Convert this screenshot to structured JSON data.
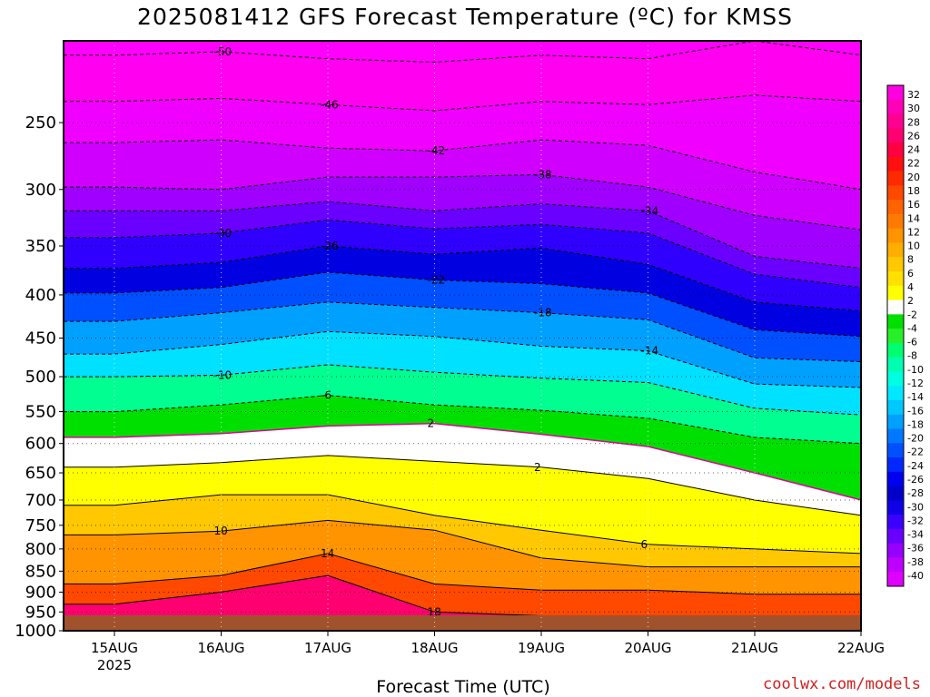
{
  "chart_data": {
    "type": "heatmap",
    "title": "2025081412 GFS Forecast Temperature (ºC) for KMSS",
    "xlabel": "Forecast Time (UTC)",
    "ylabel": "",
    "y_scale": "log",
    "y_reversed": true,
    "ylim": [
      1000,
      200
    ],
    "y_ticks": [
      250,
      300,
      350,
      400,
      450,
      500,
      550,
      600,
      650,
      700,
      750,
      800,
      850,
      900,
      950,
      1000
    ],
    "x_ticks": [
      "15AUG",
      "16AUG",
      "17AUG",
      "18AUG",
      "19AUG",
      "20AUG",
      "21AUG",
      "22AUG"
    ],
    "x_year_label": "2025",
    "grid": true,
    "colorbar": {
      "label_values": [
        32,
        30,
        28,
        26,
        24,
        22,
        20,
        18,
        16,
        14,
        12,
        10,
        8,
        6,
        4,
        2,
        -2,
        -4,
        -6,
        -8,
        -10,
        -12,
        -14,
        -16,
        -18,
        -20,
        -22,
        -24,
        -26,
        -28,
        -30,
        -32,
        -34,
        -36,
        -38,
        -40
      ],
      "colors": [
        "#ff00e0",
        "#ff00b8",
        "#ff0090",
        "#ff0070",
        "#ff0040",
        "#ff1010",
        "#ff2a00",
        "#ff4800",
        "#ff6400",
        "#ff7a00",
        "#ff9400",
        "#ffae00",
        "#ffc800",
        "#ffe000",
        "#ffff00",
        "#ffffff",
        "#00e000",
        "#28f028",
        "#00ff70",
        "#00ffb0",
        "#00ffe0",
        "#00e8ff",
        "#00c8ff",
        "#00a0ff",
        "#0078ff",
        "#0050ff",
        "#0028ff",
        "#0000f0",
        "#0000c8",
        "#1000e8",
        "#3c00ff",
        "#6a00ff",
        "#9600ff",
        "#c000ff",
        "#e000ff"
      ]
    },
    "ground_color": "#a0522d",
    "freezing_line_color": "#e0009a",
    "series": [
      {
        "label": "-50",
        "y": [
          208,
          206,
          210,
          212,
          208,
          210,
          200,
          208
        ]
      },
      {
        "label": "-46",
        "y": [
          236,
          234,
          238,
          242,
          236,
          238,
          232,
          236
        ]
      },
      {
        "label": "-42",
        "y": [
          264,
          262,
          268,
          270,
          262,
          266,
          286,
          300
        ]
      },
      {
        "label": "-38",
        "y": [
          298,
          300,
          290,
          290,
          288,
          298,
          322,
          335
        ]
      },
      {
        "label": "-34",
        "y": [
          318,
          318,
          310,
          318,
          312,
          318,
          360,
          372
        ]
      },
      {
        "label": "-30",
        "y": [
          342,
          338,
          326,
          334,
          330,
          338,
          378,
          392
        ]
      },
      {
        "label": "-26",
        "y": [
          372,
          366,
          350,
          358,
          352,
          368,
          408,
          418
        ]
      },
      {
        "label": "-22",
        "y": [
          398,
          392,
          376,
          384,
          388,
          398,
          440,
          448
        ]
      },
      {
        "label": "-18",
        "y": [
          430,
          420,
          408,
          414,
          420,
          428,
          475,
          480
        ]
      },
      {
        "label": "-14",
        "y": [
          470,
          458,
          442,
          448,
          460,
          466,
          510,
          515
        ]
      },
      {
        "label": "-10",
        "y": [
          500,
          498,
          484,
          494,
          502,
          508,
          545,
          555
        ]
      },
      {
        "label": "-6",
        "y": [
          550,
          540,
          526,
          540,
          548,
          560,
          590,
          600
        ]
      },
      {
        "label": "2",
        "y": [
          590,
          584,
          572,
          568,
          585,
          605,
          650,
          700
        ]
      },
      {
        "label": "2",
        "y": [
          640,
          632,
          620,
          630,
          640,
          660,
          700,
          730
        ]
      },
      {
        "label": "6",
        "y": [
          710,
          690,
          690,
          730,
          760,
          790,
          800,
          810
        ]
      },
      {
        "label": "10",
        "y": [
          770,
          762,
          740,
          760,
          820,
          840,
          840,
          840
        ]
      },
      {
        "label": "14",
        "y": [
          880,
          860,
          810,
          880,
          895,
          895,
          905,
          905
        ]
      },
      {
        "label": "18",
        "y": [
          930,
          900,
          860,
          950,
          960,
          960,
          960,
          960
        ]
      }
    ]
  },
  "footer": {
    "credit": "coolwx.com/models"
  }
}
